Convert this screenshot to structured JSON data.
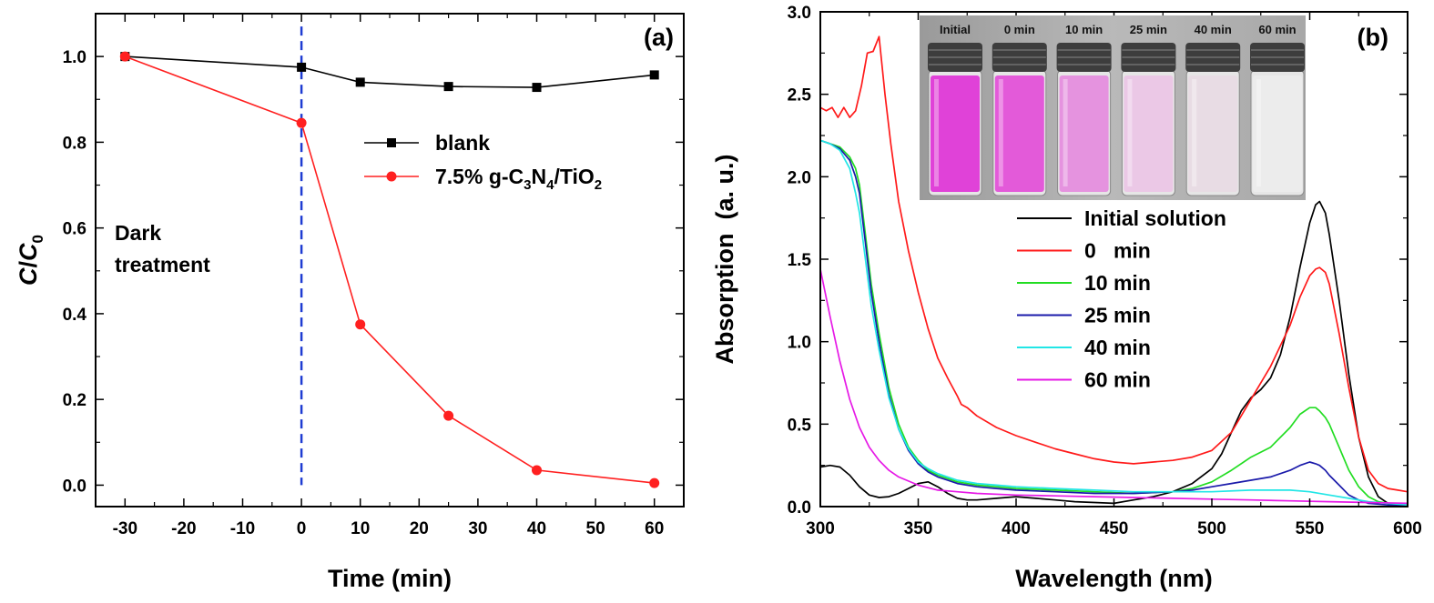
{
  "chart_data": [
    {
      "panel_label": "(a)",
      "type": "line",
      "xlabel": "Time  (min)",
      "ylabel_main": "C",
      "ylabel_slash": "/",
      "ylabel_den": "C",
      "ylabel_den_sub": "0",
      "xlim": [
        -35,
        65
      ],
      "ylim": [
        -0.05,
        1.1
      ],
      "xticks": [
        -30,
        -20,
        -10,
        0,
        10,
        20,
        30,
        40,
        50,
        60
      ],
      "xtick_labels": [
        "-30",
        "-20",
        "-10",
        "0",
        "10",
        "20",
        "30",
        "40",
        "50",
        "60"
      ],
      "yticks": [
        0.0,
        0.2,
        0.4,
        0.6,
        0.8,
        1.0
      ],
      "ytick_labels": [
        "0.0",
        "0.2",
        "0.4",
        "0.6",
        "0.8",
        "1.0"
      ],
      "x_minor_step": 5,
      "y_minor_step": 0.1,
      "series": [
        {
          "name": "blank",
          "legend_label": "blank",
          "color": "#000000",
          "marker": "square",
          "x": [
            -30,
            0,
            10,
            25,
            40,
            60
          ],
          "values": [
            1.0,
            0.975,
            0.94,
            0.93,
            0.928,
            0.957
          ]
        },
        {
          "name": "7.5% g-C3N4/TiO2",
          "legend_label": "7.5% g-C3N4/TiO2",
          "legend_parts": [
            "7.5% g-C",
            "3",
            "N",
            "4",
            "/TiO",
            "2"
          ],
          "color": "#ff2020",
          "marker": "circle",
          "x": [
            -30,
            0,
            10,
            25,
            40,
            60
          ],
          "values": [
            1.0,
            0.845,
            0.375,
            0.162,
            0.035,
            0.005
          ]
        }
      ],
      "annotations": {
        "vline_x": 0,
        "vline_color": "#1e3cd2",
        "dark_line1": "Dark",
        "dark_line2": "treatment"
      }
    },
    {
      "panel_label": "(b)",
      "type": "line",
      "xlabel": "Wavelength  (nm)",
      "ylabel": "Absorption  (a. u.)",
      "xlim": [
        300,
        600
      ],
      "ylim": [
        0,
        3.0
      ],
      "xticks": [
        300,
        350,
        400,
        450,
        500,
        550,
        600
      ],
      "xtick_labels": [
        "300",
        "350",
        "400",
        "450",
        "500",
        "550",
        "600"
      ],
      "yticks": [
        0.0,
        0.5,
        1.0,
        1.5,
        2.0,
        2.5,
        3.0
      ],
      "ytick_labels": [
        "0.0",
        "0.5",
        "1.0",
        "1.5",
        "2.0",
        "2.5",
        "3.0"
      ],
      "x_minor_step": 25,
      "y_minor_step": 0.25,
      "series": [
        {
          "name": "Initial solution",
          "color": "#000000",
          "x": [
            300,
            305,
            310,
            315,
            320,
            325,
            330,
            335,
            340,
            345,
            350,
            355,
            360,
            365,
            370,
            375,
            380,
            390,
            400,
            410,
            420,
            430,
            440,
            450,
            460,
            470,
            480,
            490,
            500,
            505,
            510,
            515,
            520,
            525,
            530,
            535,
            540,
            545,
            550,
            553,
            555,
            558,
            560,
            565,
            570,
            575,
            580,
            585,
            590,
            595,
            600
          ],
          "values": [
            0.24,
            0.25,
            0.24,
            0.19,
            0.12,
            0.07,
            0.055,
            0.06,
            0.08,
            0.11,
            0.14,
            0.15,
            0.12,
            0.08,
            0.05,
            0.04,
            0.04,
            0.05,
            0.06,
            0.05,
            0.04,
            0.03,
            0.025,
            0.02,
            0.04,
            0.06,
            0.09,
            0.14,
            0.23,
            0.32,
            0.45,
            0.58,
            0.66,
            0.71,
            0.78,
            0.92,
            1.15,
            1.45,
            1.72,
            1.83,
            1.85,
            1.78,
            1.65,
            1.25,
            0.8,
            0.42,
            0.18,
            0.06,
            0.02,
            0.01,
            0.005
          ]
        },
        {
          "name": "0   min",
          "color": "#ff1a1a",
          "x": [
            300,
            303,
            306,
            309,
            312,
            315,
            318,
            321,
            324,
            327,
            330,
            333,
            336,
            340,
            345,
            350,
            355,
            360,
            365,
            370,
            372,
            375,
            380,
            390,
            400,
            410,
            420,
            430,
            440,
            450,
            460,
            470,
            480,
            490,
            500,
            510,
            520,
            530,
            540,
            545,
            550,
            553,
            555,
            558,
            560,
            565,
            570,
            575,
            580,
            585,
            590,
            595,
            600
          ],
          "values": [
            2.42,
            2.4,
            2.42,
            2.36,
            2.42,
            2.36,
            2.4,
            2.55,
            2.75,
            2.76,
            2.85,
            2.5,
            2.2,
            1.85,
            1.55,
            1.3,
            1.08,
            0.9,
            0.78,
            0.67,
            0.62,
            0.6,
            0.55,
            0.48,
            0.43,
            0.39,
            0.35,
            0.32,
            0.29,
            0.27,
            0.26,
            0.27,
            0.28,
            0.3,
            0.34,
            0.45,
            0.65,
            0.85,
            1.1,
            1.27,
            1.4,
            1.44,
            1.45,
            1.42,
            1.35,
            1.05,
            0.72,
            0.42,
            0.22,
            0.14,
            0.11,
            0.1,
            0.09
          ]
        },
        {
          "name": "10 min",
          "color": "#22dd22",
          "x": [
            300,
            305,
            310,
            315,
            318,
            320,
            323,
            326,
            330,
            335,
            340,
            345,
            350,
            355,
            360,
            365,
            370,
            380,
            390,
            400,
            420,
            440,
            460,
            480,
            490,
            500,
            510,
            520,
            530,
            540,
            545,
            550,
            553,
            555,
            558,
            560,
            565,
            570,
            575,
            580,
            585,
            590,
            600
          ],
          "values": [
            2.22,
            2.2,
            2.18,
            2.12,
            2.05,
            1.95,
            1.65,
            1.35,
            1.05,
            0.72,
            0.5,
            0.36,
            0.28,
            0.22,
            0.19,
            0.17,
            0.15,
            0.13,
            0.12,
            0.11,
            0.1,
            0.09,
            0.08,
            0.09,
            0.11,
            0.15,
            0.22,
            0.3,
            0.36,
            0.48,
            0.56,
            0.6,
            0.6,
            0.58,
            0.54,
            0.5,
            0.36,
            0.22,
            0.12,
            0.06,
            0.03,
            0.02,
            0.01
          ]
        },
        {
          "name": "25 min",
          "color": "#1a1aaa",
          "x": [
            300,
            305,
            310,
            315,
            318,
            320,
            323,
            326,
            330,
            335,
            340,
            345,
            350,
            355,
            360,
            365,
            370,
            380,
            390,
            400,
            420,
            440,
            460,
            480,
            490,
            500,
            510,
            520,
            530,
            540,
            545,
            550,
            553,
            555,
            558,
            560,
            565,
            570,
            575,
            580,
            585,
            590,
            600
          ],
          "values": [
            2.22,
            2.2,
            2.17,
            2.1,
            2.0,
            1.9,
            1.6,
            1.3,
            1.0,
            0.68,
            0.47,
            0.34,
            0.26,
            0.21,
            0.18,
            0.16,
            0.14,
            0.12,
            0.11,
            0.1,
            0.09,
            0.08,
            0.08,
            0.09,
            0.1,
            0.12,
            0.14,
            0.16,
            0.18,
            0.22,
            0.25,
            0.27,
            0.26,
            0.25,
            0.22,
            0.19,
            0.13,
            0.07,
            0.04,
            0.02,
            0.015,
            0.01,
            0.005
          ]
        },
        {
          "name": "40 min",
          "color": "#22e6e6",
          "x": [
            300,
            305,
            310,
            315,
            318,
            320,
            323,
            326,
            330,
            335,
            340,
            345,
            350,
            355,
            360,
            365,
            370,
            380,
            390,
            400,
            420,
            440,
            460,
            480,
            500,
            520,
            530,
            540,
            550,
            560,
            570,
            580,
            590,
            600
          ],
          "values": [
            2.22,
            2.2,
            2.16,
            2.05,
            1.9,
            1.78,
            1.5,
            1.22,
            0.95,
            0.66,
            0.47,
            0.35,
            0.27,
            0.23,
            0.2,
            0.18,
            0.16,
            0.14,
            0.13,
            0.12,
            0.11,
            0.1,
            0.09,
            0.09,
            0.09,
            0.1,
            0.1,
            0.1,
            0.09,
            0.07,
            0.05,
            0.03,
            0.02,
            0.01
          ]
        },
        {
          "name": "60 min",
          "color": "#e619e6",
          "x": [
            300,
            305,
            310,
            315,
            320,
            325,
            330,
            335,
            340,
            350,
            360,
            370,
            380,
            400,
            420,
            440,
            460,
            480,
            500,
            520,
            540,
            560,
            580,
            600
          ],
          "values": [
            1.44,
            1.15,
            0.88,
            0.65,
            0.48,
            0.36,
            0.28,
            0.22,
            0.18,
            0.13,
            0.1,
            0.09,
            0.08,
            0.07,
            0.065,
            0.06,
            0.055,
            0.05,
            0.045,
            0.04,
            0.035,
            0.03,
            0.025,
            0.02
          ]
        }
      ],
      "inset": {
        "labels": [
          "Initial",
          "0 min",
          "10 min",
          "25 min",
          "40 min",
          "60 min"
        ],
        "liquid_colors": [
          "#e042d8",
          "#e35ad9",
          "#e593df",
          "#ebc8e6",
          "#e8dce4",
          "#ececec"
        ]
      }
    }
  ]
}
